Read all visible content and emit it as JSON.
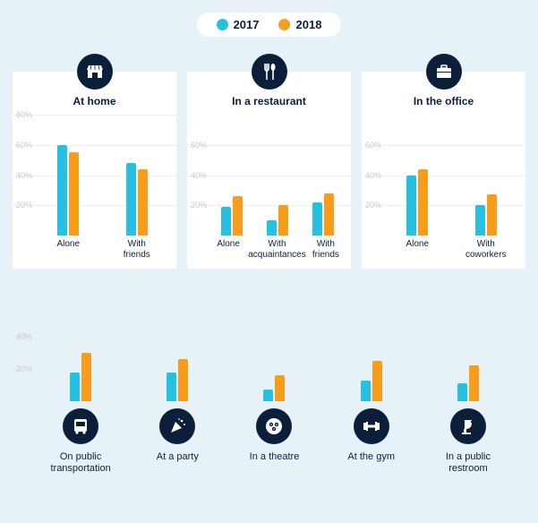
{
  "colors": {
    "series_2017": "#26c0e0",
    "series_2018": "#f89c1c",
    "panel_bg": "#ffffff",
    "page_bg": "#e6f2f7",
    "icon_bg": "#0b1f3a",
    "grid": "#f0f0f0",
    "ylab": "#c5c9cf",
    "text": "#0b1f3a"
  },
  "legend": [
    {
      "label": "2017",
      "color": "#26c0e0"
    },
    {
      "label": "2018",
      "color": "#f89c1c"
    }
  ],
  "panels": [
    {
      "title": "At home",
      "icon": "home",
      "ymax": 80,
      "yticks": [
        20,
        40,
        60,
        80
      ],
      "categories": [
        "Alone",
        "With\nfriends"
      ],
      "series": [
        {
          "name": "2017",
          "color": "#26c0e0",
          "values": [
            60,
            48
          ]
        },
        {
          "name": "2018",
          "color": "#f89c1c",
          "values": [
            55,
            44
          ]
        }
      ]
    },
    {
      "title": "In a restaurant",
      "icon": "utensils",
      "ymax": 80,
      "yticks": [
        20,
        40,
        60
      ],
      "categories": [
        "Alone",
        "With\nacquaintances",
        "With\nfriends"
      ],
      "series": [
        {
          "name": "2017",
          "color": "#26c0e0",
          "values": [
            19,
            10,
            22
          ]
        },
        {
          "name": "2018",
          "color": "#f89c1c",
          "values": [
            26,
            20,
            28
          ]
        }
      ]
    },
    {
      "title": "In the office",
      "icon": "briefcase",
      "ymax": 80,
      "yticks": [
        20,
        40,
        60
      ],
      "categories": [
        "Alone",
        "With\ncoworkers"
      ],
      "series": [
        {
          "name": "2017",
          "color": "#26c0e0",
          "values": [
            40,
            20
          ]
        },
        {
          "name": "2018",
          "color": "#f89c1c",
          "values": [
            44,
            27
          ]
        }
      ]
    }
  ],
  "bottom": {
    "ymax": 50,
    "yticks": [
      20,
      40
    ],
    "items": [
      {
        "label": "On public\ntransportation",
        "icon": "bus",
        "v2017": 18,
        "v2018": 30
      },
      {
        "label": "At a party",
        "icon": "party",
        "v2017": 18,
        "v2018": 26
      },
      {
        "label": "In a theatre",
        "icon": "theatre",
        "v2017": 7,
        "v2018": 16
      },
      {
        "label": "At the gym",
        "icon": "gym",
        "v2017": 13,
        "v2018": 25
      },
      {
        "label": "In a public\nrestroom",
        "icon": "restroom",
        "v2017": 11,
        "v2018": 22
      }
    ]
  }
}
